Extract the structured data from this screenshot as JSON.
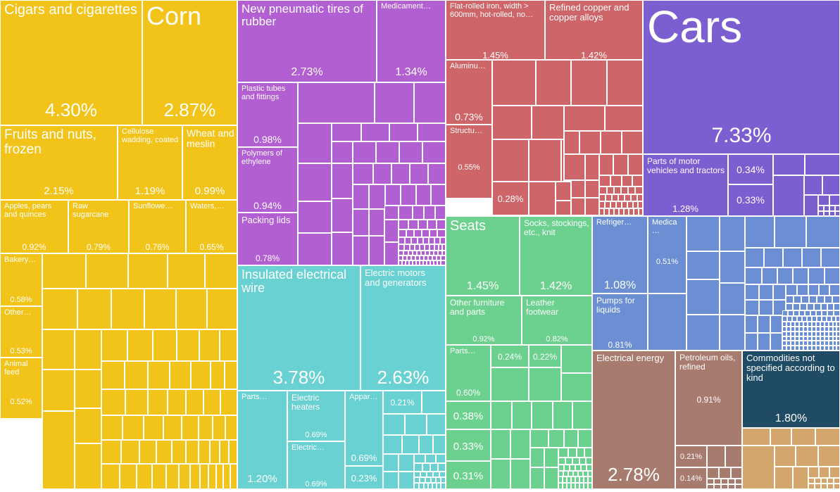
{
  "chart_data": {
    "type": "treemap",
    "unit": "%",
    "colors": {
      "yellow": "#f2c318",
      "purple": "#b15fd1",
      "teal": "#69d1d1",
      "red": "#ce6569",
      "green": "#6cd18e",
      "violet": "#7b5fd1",
      "blue": "#6b8fd2",
      "brown": "#a77b6e",
      "navy": "#1f4b65",
      "tan": "#d3a76b"
    },
    "labeled_cells": [
      {
        "label": "Cigars and cigarettes",
        "value": 4.3,
        "color": "yellow"
      },
      {
        "label": "Corn",
        "value": 2.87,
        "color": "yellow"
      },
      {
        "label": "Fruits and nuts, frozen",
        "value": 2.15,
        "color": "yellow"
      },
      {
        "label": "Cellulose wadding, coated",
        "value": 1.19,
        "color": "yellow"
      },
      {
        "label": "Wheat and meslin",
        "value": 0.99,
        "color": "yellow"
      },
      {
        "label": "Apples, pears and quinces",
        "value": 0.92,
        "color": "yellow"
      },
      {
        "label": "Raw sugarcane",
        "value": 0.79,
        "color": "yellow"
      },
      {
        "label": "Sunflowe…",
        "value": 0.76,
        "color": "yellow"
      },
      {
        "label": "Waters,…",
        "value": 0.65,
        "color": "yellow"
      },
      {
        "label": "Bakery…",
        "value": 0.58,
        "color": "yellow"
      },
      {
        "label": "Other…",
        "value": 0.53,
        "color": "yellow"
      },
      {
        "label": "Animal feed",
        "value": 0.52,
        "color": "yellow"
      },
      {
        "label": "New pneumatic tires of rubber",
        "value": 2.73,
        "color": "purple"
      },
      {
        "label": "Medicament…",
        "value": 1.34,
        "color": "purple"
      },
      {
        "label": "Plastic tubes and fittings",
        "value": 0.98,
        "color": "purple"
      },
      {
        "label": "Polymers of ethylene",
        "value": 0.94,
        "color": "purple"
      },
      {
        "label": "Packing lids",
        "value": 0.78,
        "color": "purple"
      },
      {
        "label": "Insulated electrical wire",
        "value": 3.78,
        "color": "teal"
      },
      {
        "label": "Electric motors and generators",
        "value": 2.63,
        "color": "teal"
      },
      {
        "label": "Parts…",
        "value": 1.2,
        "color": "teal"
      },
      {
        "label": "Electric heaters",
        "value": 0.69,
        "color": "teal"
      },
      {
        "label": "Electric…",
        "value": 0.69,
        "color": "teal"
      },
      {
        "label": "Appar…",
        "value": 0.69,
        "color": "teal"
      },
      {
        "label": "",
        "value": 0.23,
        "color": "teal"
      },
      {
        "label": "",
        "value": 0.21,
        "color": "teal"
      },
      {
        "label": "Flat-rolled iron, width > 600mm, hot-rolled, no…",
        "value": 1.45,
        "color": "red"
      },
      {
        "label": "Refined copper and copper alloys",
        "value": 1.42,
        "color": "red"
      },
      {
        "label": "Aluminu…",
        "value": 0.73,
        "color": "red"
      },
      {
        "label": "Structu…",
        "value": 0.55,
        "color": "red"
      },
      {
        "label": "",
        "value": 0.28,
        "color": "red"
      },
      {
        "label": "Cars",
        "value": 7.33,
        "color": "violet"
      },
      {
        "label": "Parts of motor vehicles and tractors",
        "value": 1.28,
        "color": "violet"
      },
      {
        "label": "",
        "value": 0.34,
        "color": "violet"
      },
      {
        "label": "",
        "value": 0.33,
        "color": "violet"
      },
      {
        "label": "Seats",
        "value": 1.45,
        "color": "green"
      },
      {
        "label": "Socks, stockings, etc., knit",
        "value": 1.42,
        "color": "green"
      },
      {
        "label": "Other furniture and parts",
        "value": 0.92,
        "color": "green"
      },
      {
        "label": "Leather footwear",
        "value": 0.82,
        "color": "green"
      },
      {
        "label": "Parts…",
        "value": 0.6,
        "color": "green"
      },
      {
        "label": "",
        "value": 0.24,
        "color": "green"
      },
      {
        "label": "",
        "value": 0.22,
        "color": "green"
      },
      {
        "label": "",
        "value": 0.38,
        "color": "green"
      },
      {
        "label": "",
        "value": 0.33,
        "color": "green"
      },
      {
        "label": "",
        "value": 0.31,
        "color": "green"
      },
      {
        "label": "Refriger…",
        "value": 1.08,
        "color": "blue"
      },
      {
        "label": "Medica…",
        "value": 0.51,
        "color": "blue"
      },
      {
        "label": "Pumps for liquids",
        "value": 0.81,
        "color": "blue"
      },
      {
        "label": "Electrical energy",
        "value": 2.78,
        "color": "brown"
      },
      {
        "label": "Petroleum oils, refined",
        "value": 0.91,
        "color": "brown"
      },
      {
        "label": "",
        "value": 0.21,
        "color": "brown"
      },
      {
        "label": "",
        "value": 0.14,
        "color": "brown"
      },
      {
        "label": "Commodities not specified according to kind",
        "value": 1.8,
        "color": "navy"
      }
    ]
  }
}
